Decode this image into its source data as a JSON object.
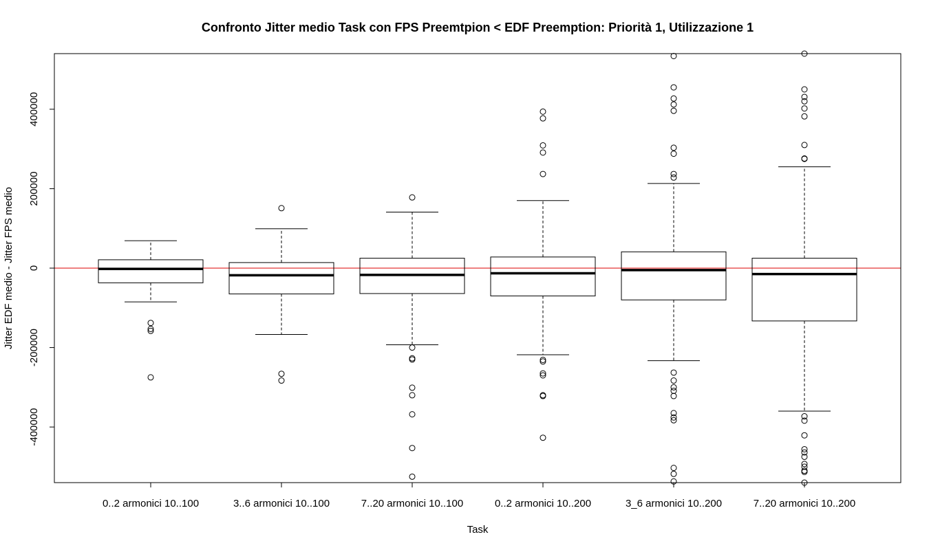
{
  "chart_data": {
    "type": "boxplot",
    "title": "Confronto Jitter medio Task con FPS Preemtpion < EDF Preemption: Priorità 1, Utilizzazione 1",
    "xlabel": "Task",
    "ylabel": "Jitter EDF medio - Jitter FPS medio",
    "ylim": [
      -540000,
      540000
    ],
    "yticks": [
      -400000,
      -200000,
      0,
      200000,
      400000
    ],
    "reference_line": {
      "y": 0,
      "color": "#dd0000"
    },
    "categories": [
      "0..2 armonici 10..100",
      "3..6 armonici 10..100",
      "7..20 armonici 10..100",
      "0..2 armonici 10..200",
      "3_6 armonici 10..200",
      "7..20 armonici 10..200"
    ],
    "boxes": [
      {
        "whisker_low": -85000,
        "q1": -37000,
        "median": -2000,
        "q3": 21000,
        "whisker_high": 69000,
        "outliers": [
          -138000,
          -153000,
          -158000,
          -275000
        ]
      },
      {
        "whisker_low": -167000,
        "q1": -65000,
        "median": -18000,
        "q3": 14000,
        "whisker_high": 99000,
        "outliers": [
          151000,
          -266000,
          -283000
        ]
      },
      {
        "whisker_low": -193000,
        "q1": -64000,
        "median": -17000,
        "q3": 25000,
        "whisker_high": 141000,
        "outliers": [
          178000,
          -200000,
          -227000,
          -230000,
          -301000,
          -320000,
          -368000,
          -453000,
          -525000
        ]
      },
      {
        "whisker_low": -218000,
        "q1": -70000,
        "median": -13000,
        "q3": 28000,
        "whisker_high": 170000,
        "outliers": [
          394000,
          377000,
          309000,
          291000,
          237000,
          -231000,
          -235000,
          -265000,
          -270000,
          -320000,
          -322000,
          -427000
        ]
      },
      {
        "whisker_low": -233000,
        "q1": -80000,
        "median": -5000,
        "q3": 41000,
        "whisker_high": 213000,
        "outliers": [
          534000,
          455000,
          427000,
          412000,
          396000,
          303000,
          288000,
          237000,
          228000,
          -263000,
          -283000,
          -300000,
          -309000,
          -322000,
          -365000,
          -376000,
          -383000,
          -503000,
          -518000,
          -537000
        ]
      },
      {
        "whisker_low": -360000,
        "q1": -133000,
        "median": -15000,
        "q3": 25000,
        "whisker_high": 255000,
        "outliers": [
          540000,
          450000,
          431000,
          420000,
          402000,
          382000,
          310000,
          276000,
          275000,
          -373000,
          -384000,
          -421000,
          -456000,
          -464000,
          -475000,
          -493000,
          -500000,
          -510000,
          -513000,
          -540000
        ]
      }
    ]
  }
}
